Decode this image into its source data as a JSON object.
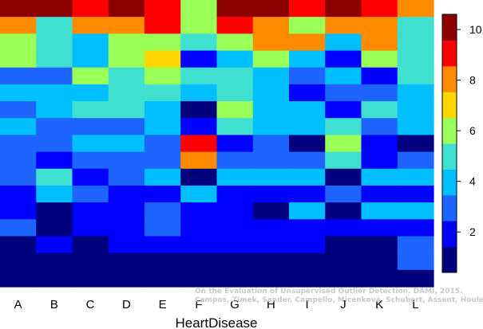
{
  "chart_data": {
    "type": "heatmap",
    "title": "",
    "xlabel": "HeartDisease",
    "ylabel": "",
    "x_categories": [
      "A",
      "B",
      "C",
      "D",
      "E",
      "F",
      "G",
      "H",
      "I",
      "J",
      "K",
      "L"
    ],
    "rows_top_to_bottom": [
      [
        10.5,
        10.5,
        9.5,
        10.5,
        9.5,
        6.3,
        10.5,
        10.5,
        9.5,
        10.5,
        9.5,
        8.3
      ],
      [
        8.3,
        5.3,
        8.3,
        8.3,
        9.5,
        6.3,
        9.5,
        8.3,
        6.3,
        8.3,
        8.3,
        5.3
      ],
      [
        6.3,
        5.3,
        4.3,
        6.3,
        6.3,
        5.3,
        6.3,
        8.3,
        8.3,
        4.3,
        8.3,
        5.3
      ],
      [
        6.3,
        5.3,
        4.3,
        6.3,
        7.3,
        2.3,
        4.3,
        6.3,
        4.3,
        2.3,
        6.3,
        5.3
      ],
      [
        3.3,
        3.3,
        6.3,
        5.3,
        6.3,
        5.3,
        5.3,
        4.3,
        3.3,
        4.3,
        2.3,
        5.3
      ],
      [
        4.3,
        4.3,
        4.3,
        5.3,
        5.3,
        4.3,
        5.3,
        4.3,
        2.3,
        3.3,
        3.3,
        4.3
      ],
      [
        3.3,
        4.3,
        5.3,
        5.3,
        4.3,
        1.0,
        6.3,
        4.3,
        4.3,
        2.3,
        5.3,
        4.3
      ],
      [
        4.3,
        3.3,
        3.3,
        3.3,
        4.3,
        2.3,
        5.3,
        4.3,
        4.3,
        5.3,
        3.3,
        4.3
      ],
      [
        3.3,
        3.3,
        4.3,
        4.3,
        3.3,
        9.5,
        2.3,
        3.3,
        1.0,
        6.3,
        2.3,
        1.0
      ],
      [
        3.3,
        2.3,
        3.3,
        3.3,
        3.3,
        8.3,
        3.3,
        3.3,
        3.3,
        5.3,
        2.3,
        3.3
      ],
      [
        3.3,
        5.3,
        2.3,
        3.3,
        4.3,
        1.0,
        4.3,
        4.3,
        4.3,
        1.0,
        4.3,
        4.3
      ],
      [
        2.3,
        4.3,
        3.3,
        2.3,
        2.3,
        4.3,
        2.3,
        2.3,
        2.3,
        3.3,
        2.3,
        2.3
      ],
      [
        2.3,
        1.0,
        2.3,
        2.3,
        3.3,
        2.3,
        2.3,
        1.0,
        4.3,
        1.0,
        4.3,
        4.3
      ],
      [
        3.3,
        1.0,
        2.3,
        2.3,
        3.3,
        2.3,
        2.3,
        2.3,
        2.3,
        2.3,
        2.3,
        2.3
      ],
      [
        1.0,
        2.3,
        1.0,
        2.3,
        2.3,
        2.3,
        2.3,
        2.3,
        2.3,
        1.0,
        1.0,
        3.3
      ],
      [
        1.0,
        1.0,
        1.0,
        1.0,
        1.0,
        1.0,
        1.0,
        1.0,
        1.0,
        1.0,
        1.0,
        3.3
      ],
      [
        1.0,
        1.0,
        1.0,
        1.0,
        1.0,
        1.0,
        1.0,
        1.0,
        1.0,
        1.0,
        1.0,
        1.0
      ]
    ],
    "colorbar": {
      "range": [
        0.4,
        10.6
      ],
      "ticks": [
        2,
        4,
        6,
        8,
        10
      ],
      "colors_low_to_high": [
        "#00007f",
        "#0000ff",
        "#1e64ff",
        "#00bfff",
        "#40e0d0",
        "#9aff57",
        "#ffd700",
        "#ff8c00",
        "#ff0000",
        "#8b0000"
      ]
    },
    "palette": {
      "navy": "#00008f",
      "blue": "#0000ef",
      "mid_blue": "#1f73ff",
      "cyan": "#00cdff",
      "aquamarine": "#3cedd3",
      "light_green": "#b7f45a",
      "yellow": "#ffd200",
      "orange": "#ff7f0c",
      "red": "#ff0c00",
      "dark_red": "#8f0000"
    },
    "credit": [
      "On the Evaluation of Unsupervised Outlier Detection. DAMI, 2015.",
      "Campos, Zimek, Sander, Campello, Micenková, Schubert, Assent, Houle"
    ]
  }
}
